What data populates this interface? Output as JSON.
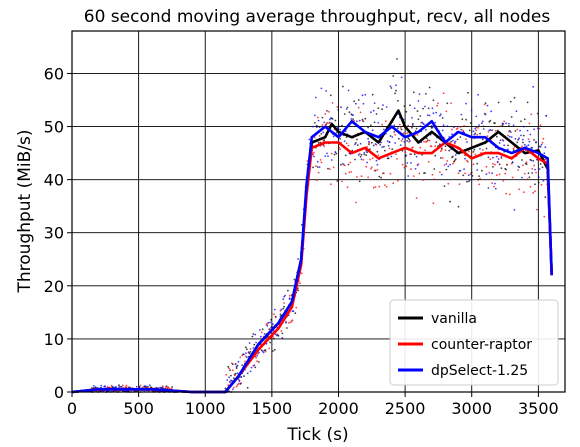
{
  "chart_data": {
    "type": "scatter",
    "title": "60 second moving average throughput, recv, all nodes",
    "xlabel": "Tick (s)",
    "ylabel": "Throughput (MiB/s)",
    "xlim": [
      0,
      3700
    ],
    "ylim": [
      0,
      68
    ],
    "xticks": [
      "0",
      "500",
      "1000",
      "1500",
      "2000",
      "2500",
      "3000",
      "3500"
    ],
    "yticks": [
      "0",
      "10",
      "20",
      "30",
      "40",
      "50",
      "60"
    ],
    "xtick_values": [
      0,
      500,
      1000,
      1500,
      2000,
      2500,
      3000,
      3500
    ],
    "ytick_values": [
      0,
      10,
      20,
      30,
      40,
      50,
      60
    ],
    "grid": true,
    "legend_position": "bottom-right",
    "series": [
      {
        "name": "vanilla",
        "color": "#000000",
        "x": [
          0,
          200,
          600,
          900,
          1150,
          1250,
          1400,
          1550,
          1650,
          1720,
          1760,
          1800,
          1900,
          1950,
          2000,
          2100,
          2200,
          2300,
          2400,
          2450,
          2500,
          2600,
          2700,
          2800,
          2900,
          3000,
          3100,
          3200,
          3300,
          3400,
          3500,
          3570,
          3600
        ],
        "y": [
          0,
          0.5,
          0.5,
          0,
          0,
          3,
          9,
          13,
          17,
          25,
          38,
          47,
          48,
          50.5,
          49,
          48,
          49,
          47,
          51,
          53,
          50,
          47,
          49,
          47,
          45,
          46,
          47,
          49,
          47,
          45,
          45.5,
          42,
          22
        ]
      },
      {
        "name": "counter-raptor",
        "color": "#ff0000",
        "x": [
          0,
          200,
          600,
          900,
          1150,
          1250,
          1400,
          1550,
          1650,
          1720,
          1760,
          1800,
          1900,
          2000,
          2100,
          2200,
          2300,
          2400,
          2500,
          2600,
          2700,
          2800,
          2900,
          3000,
          3100,
          3200,
          3300,
          3400,
          3500,
          3570,
          3600
        ],
        "y": [
          0,
          0.5,
          0.5,
          0,
          0,
          3,
          8,
          12,
          16,
          24,
          37,
          46,
          47,
          47,
          45,
          46,
          44,
          45,
          46,
          45,
          45,
          47,
          46,
          44,
          45,
          45,
          44,
          46,
          44,
          43,
          22
        ]
      },
      {
        "name": "dpSelect-1.25",
        "color": "#0000ff",
        "x": [
          0,
          200,
          600,
          900,
          1150,
          1250,
          1400,
          1550,
          1650,
          1720,
          1760,
          1800,
          1900,
          2000,
          2100,
          2200,
          2300,
          2400,
          2450,
          2500,
          2600,
          2700,
          2800,
          2900,
          3000,
          3100,
          3200,
          3300,
          3400,
          3500,
          3570,
          3600
        ],
        "y": [
          0,
          0.5,
          0.5,
          0,
          0,
          3,
          9,
          13,
          17,
          25,
          39,
          48,
          50,
          48,
          51,
          49,
          48,
          50,
          49,
          48,
          49,
          51,
          47,
          49,
          48,
          48,
          46,
          45,
          46,
          45,
          44,
          22
        ]
      }
    ]
  }
}
